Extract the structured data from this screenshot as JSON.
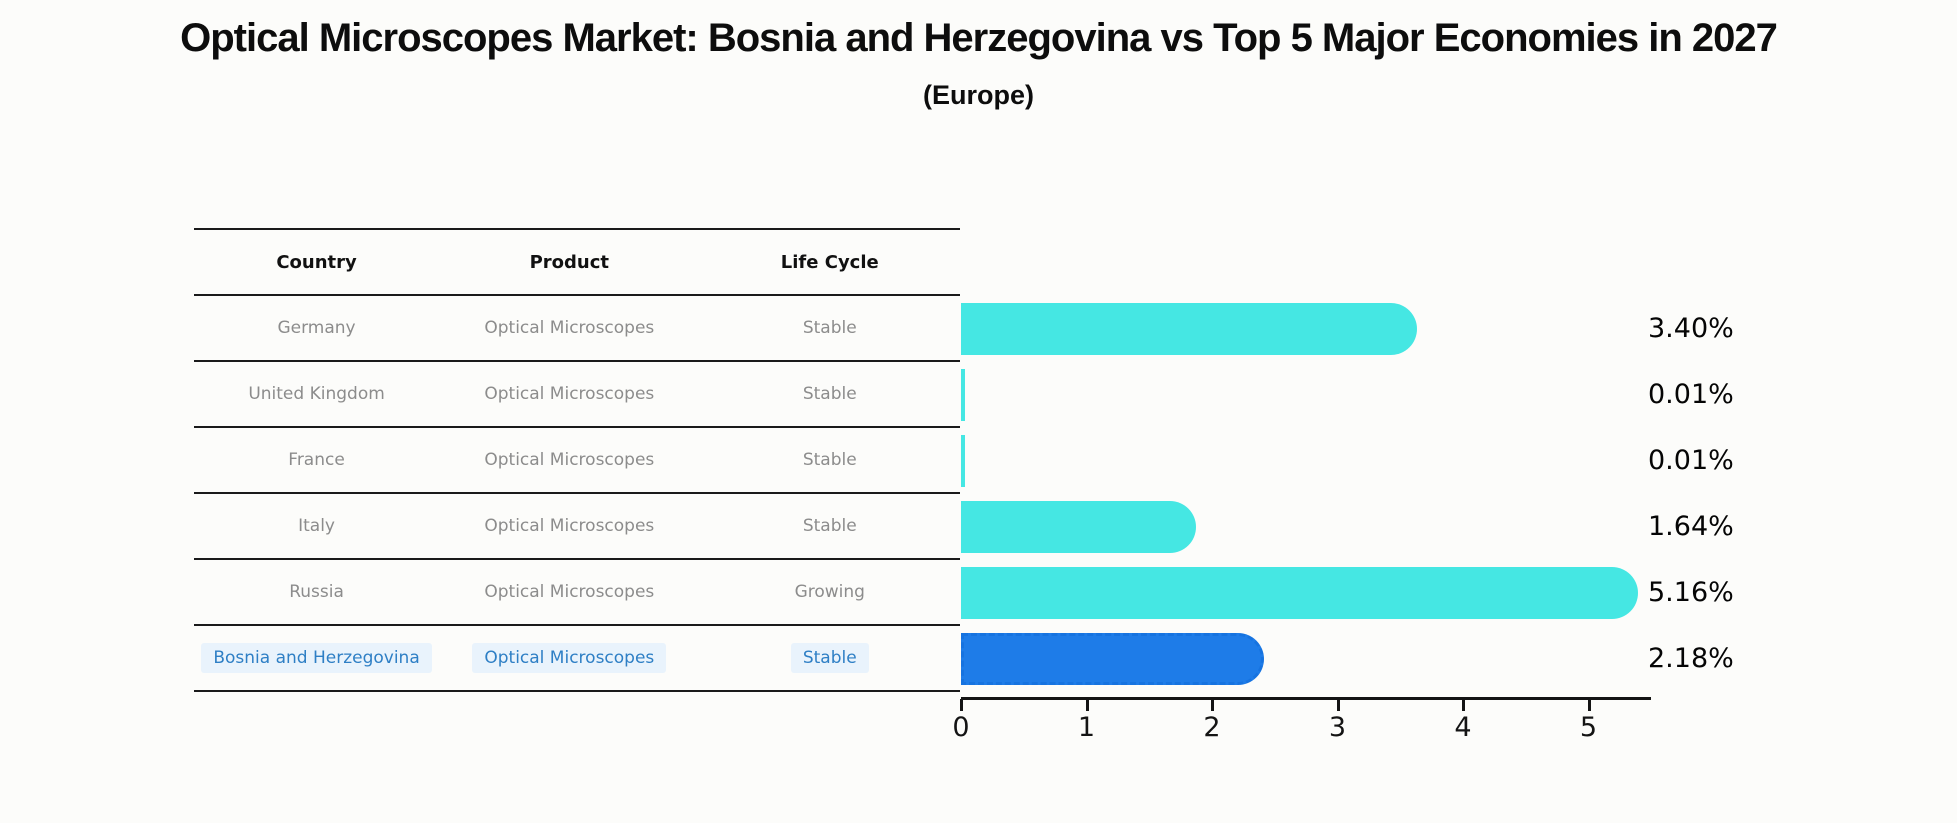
{
  "title": "Optical Microscopes Market: Bosnia and Herzegovina vs Top 5 Major Economies in 2027",
  "subtitle": "(Europe)",
  "table": {
    "columns": [
      "Country",
      "Product",
      "Life Cycle"
    ],
    "rows": [
      {
        "country": "Germany",
        "product": "Optical Microscopes",
        "life_cycle": "Stable",
        "share_label": "3.40%",
        "highlighted": false
      },
      {
        "country": "United Kingdom",
        "product": "Optical Microscopes",
        "life_cycle": "Stable",
        "share_label": "0.01%",
        "highlighted": false
      },
      {
        "country": "France",
        "product": "Optical Microscopes",
        "life_cycle": "Stable",
        "share_label": "0.01%",
        "highlighted": false
      },
      {
        "country": "Italy",
        "product": "Optical Microscopes",
        "life_cycle": "Stable",
        "share_label": "1.64%",
        "highlighted": false
      },
      {
        "country": "Russia",
        "product": "Optical Microscopes",
        "life_cycle": "Growing",
        "share_label": "5.16%",
        "highlighted": false
      },
      {
        "country": "Bosnia and Herzegovina",
        "product": "Optical Microscopes",
        "life_cycle": "Stable",
        "share_label": "2.18%",
        "highlighted": true
      }
    ]
  },
  "chart_data": {
    "type": "bar",
    "orientation": "horizontal",
    "title": "Optical Microscopes Market: Bosnia and Herzegovina vs Top 5 Major Economies in 2027",
    "subtitle": "(Europe)",
    "categories": [
      "Germany",
      "United Kingdom",
      "France",
      "Italy",
      "Russia",
      "Bosnia and Herzegovina"
    ],
    "values": [
      3.4,
      0.01,
      0.01,
      1.64,
      5.16,
      2.18
    ],
    "value_labels": [
      "3.40%",
      "0.01%",
      "0.01%",
      "1.64%",
      "5.16%",
      "2.18%"
    ],
    "xlabel": "",
    "ylabel": "",
    "xlim": [
      0,
      5.5
    ],
    "x_ticks": [
      0,
      1,
      2,
      3,
      4,
      5
    ],
    "grid": false,
    "legend_position": null,
    "bar_color": "#45e7e3",
    "highlight_bar_color": "#1e7ce8",
    "highlight_index": 5
  },
  "colors": {
    "background": "#fcfcfa",
    "bar_cyan": "#45e7e3",
    "bar_blue": "#1e7ce8",
    "bar_blue_border": "#1673e0",
    "rule": "#1a1a1a",
    "row_text": "#8c8c8c",
    "highlight_text": "#2e7fc5",
    "highlight_text_bg": "#e9f3fc",
    "axis_text": "#141414"
  }
}
